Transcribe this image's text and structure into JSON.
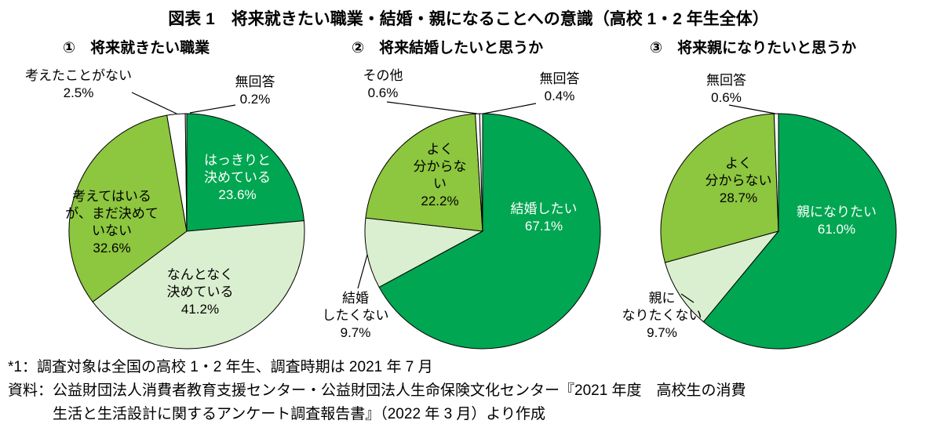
{
  "page_title": "図表 1　将来就きたい職業・結婚・親になることへの意識（高校 1・2 年生全体）",
  "colors": {
    "dark_green": "#00a651",
    "medium_green": "#8dc63f",
    "pale_green": "#daefd0",
    "white": "#ffffff",
    "stroke": "#000000"
  },
  "chart_data": [
    {
      "type": "pie",
      "title": "①　将来就きたい職業",
      "unit": "%",
      "start_angle_deg": 0,
      "direction": "clockwise",
      "slices": [
        {
          "name": "はっきりと決めている",
          "value": 23.6,
          "color": "dark_green"
        },
        {
          "name": "なんとなく決めている",
          "value": 41.2,
          "color": "pale_green"
        },
        {
          "name": "考えてはいるが、まだ決めていない",
          "value": 32.6,
          "color": "medium_green"
        },
        {
          "name": "考えたことがない",
          "value": 2.5,
          "color": "white"
        },
        {
          "name": "無回答",
          "value": 0.2,
          "color": "white"
        }
      ],
      "labels": {
        "decided": [
          "はっきりと",
          "決めている",
          "23.6%"
        ],
        "somewhat": [
          "なんとなく",
          "決めている",
          "41.2%"
        ],
        "thinking": [
          "考えてはいる",
          "が、まだ決めて",
          "いない",
          "32.6%"
        ],
        "never": [
          "考えたことがない",
          "2.5%"
        ],
        "na": [
          "無回答",
          "0.2%"
        ]
      }
    },
    {
      "type": "pie",
      "title": "②　将来結婚したいと思うか",
      "unit": "%",
      "start_angle_deg": 0,
      "direction": "clockwise",
      "slices": [
        {
          "name": "結婚したい",
          "value": 67.1,
          "color": "dark_green"
        },
        {
          "name": "結婚したくない",
          "value": 9.7,
          "color": "pale_green"
        },
        {
          "name": "よく分からない",
          "value": 22.2,
          "color": "medium_green"
        },
        {
          "name": "その他",
          "value": 0.6,
          "color": "white"
        },
        {
          "name": "無回答",
          "value": 0.4,
          "color": "white"
        }
      ],
      "labels": {
        "want": [
          "結婚したい",
          "67.1%"
        ],
        "not_sure": [
          "よく",
          "分からな",
          "い",
          "22.2%"
        ],
        "dont_want": [
          "結婚",
          "したくない",
          "9.7%"
        ],
        "other": [
          "その他",
          "0.6%"
        ],
        "na": [
          "無回答",
          "0.4%"
        ]
      }
    },
    {
      "type": "pie",
      "title": "③　将来親になりたいと思うか",
      "unit": "%",
      "start_angle_deg": 0,
      "direction": "clockwise",
      "slices": [
        {
          "name": "親になりたい",
          "value": 61.0,
          "color": "dark_green"
        },
        {
          "name": "親になりたくない",
          "value": 9.7,
          "color": "pale_green"
        },
        {
          "name": "よく分からない",
          "value": 28.7,
          "color": "medium_green"
        },
        {
          "name": "無回答",
          "value": 0.6,
          "color": "white"
        }
      ],
      "labels": {
        "want": [
          "親になりたい",
          "61.0%"
        ],
        "not_sure": [
          "よく",
          "分からない",
          "28.7%"
        ],
        "dont_want": [
          "親に",
          "なりたくない",
          "9.7%"
        ],
        "na": [
          "無回答",
          "0.6%"
        ]
      }
    }
  ],
  "footnotes": [
    "*1：調査対象は全国の高校 1・2 年生、調査時期は 2021 年 7 月",
    "資料：公益財団法人消費者教育支援センター・公益財団法人生命保険文化センター『2021 年度　高校生の消費",
    "生活と生活設計に関するアンケート調査報告書』（2022 年 3 月）より作成"
  ]
}
